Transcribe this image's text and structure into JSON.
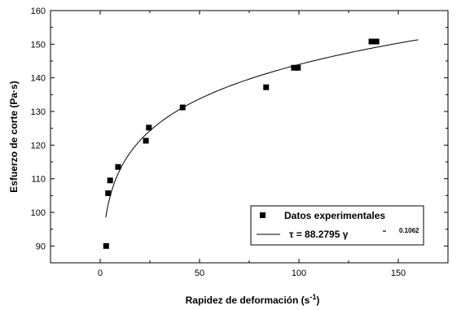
{
  "chart_data": {
    "type": "scatter",
    "title": "",
    "xlabel": "Rapidez de deformación (s",
    "xlabel_sup": "-1",
    "xlabel_end": ")",
    "ylabel": "Esfuerzo de corte  (Pa·s)",
    "xlim": [
      -25,
      175
    ],
    "ylim": [
      85,
      160
    ],
    "xticks": [
      0,
      50,
      100,
      150
    ],
    "yticks": [
      90,
      100,
      110,
      120,
      130,
      140,
      150,
      160
    ],
    "xtick_labels": [
      "0",
      "50",
      "100",
      "150"
    ],
    "ytick_labels": [
      "90",
      "100",
      "110",
      "120",
      "130",
      "140",
      "150",
      "160"
    ],
    "grid": false,
    "legend_position": "bottom-right",
    "series": [
      {
        "name": "Datos experimentales",
        "kind": "scatter",
        "marker": "square",
        "x": [
          3,
          4,
          5,
          9,
          23,
          24.5,
          41.5,
          83.5,
          97.5,
          99.5,
          136.5,
          139
        ],
        "y": [
          90,
          105.7,
          109.5,
          113.5,
          121.3,
          125.2,
          131.2,
          137.2,
          143,
          143,
          150.8,
          150.8
        ]
      },
      {
        "name_prefix": "τ = 88.2795 ",
        "name_symbol": "γ",
        "name_exponent": "0.1062",
        "kind": "line",
        "model": {
          "a": 88.2795,
          "b": 0.1062
        },
        "x_range": [
          2.8,
          160
        ]
      }
    ]
  }
}
